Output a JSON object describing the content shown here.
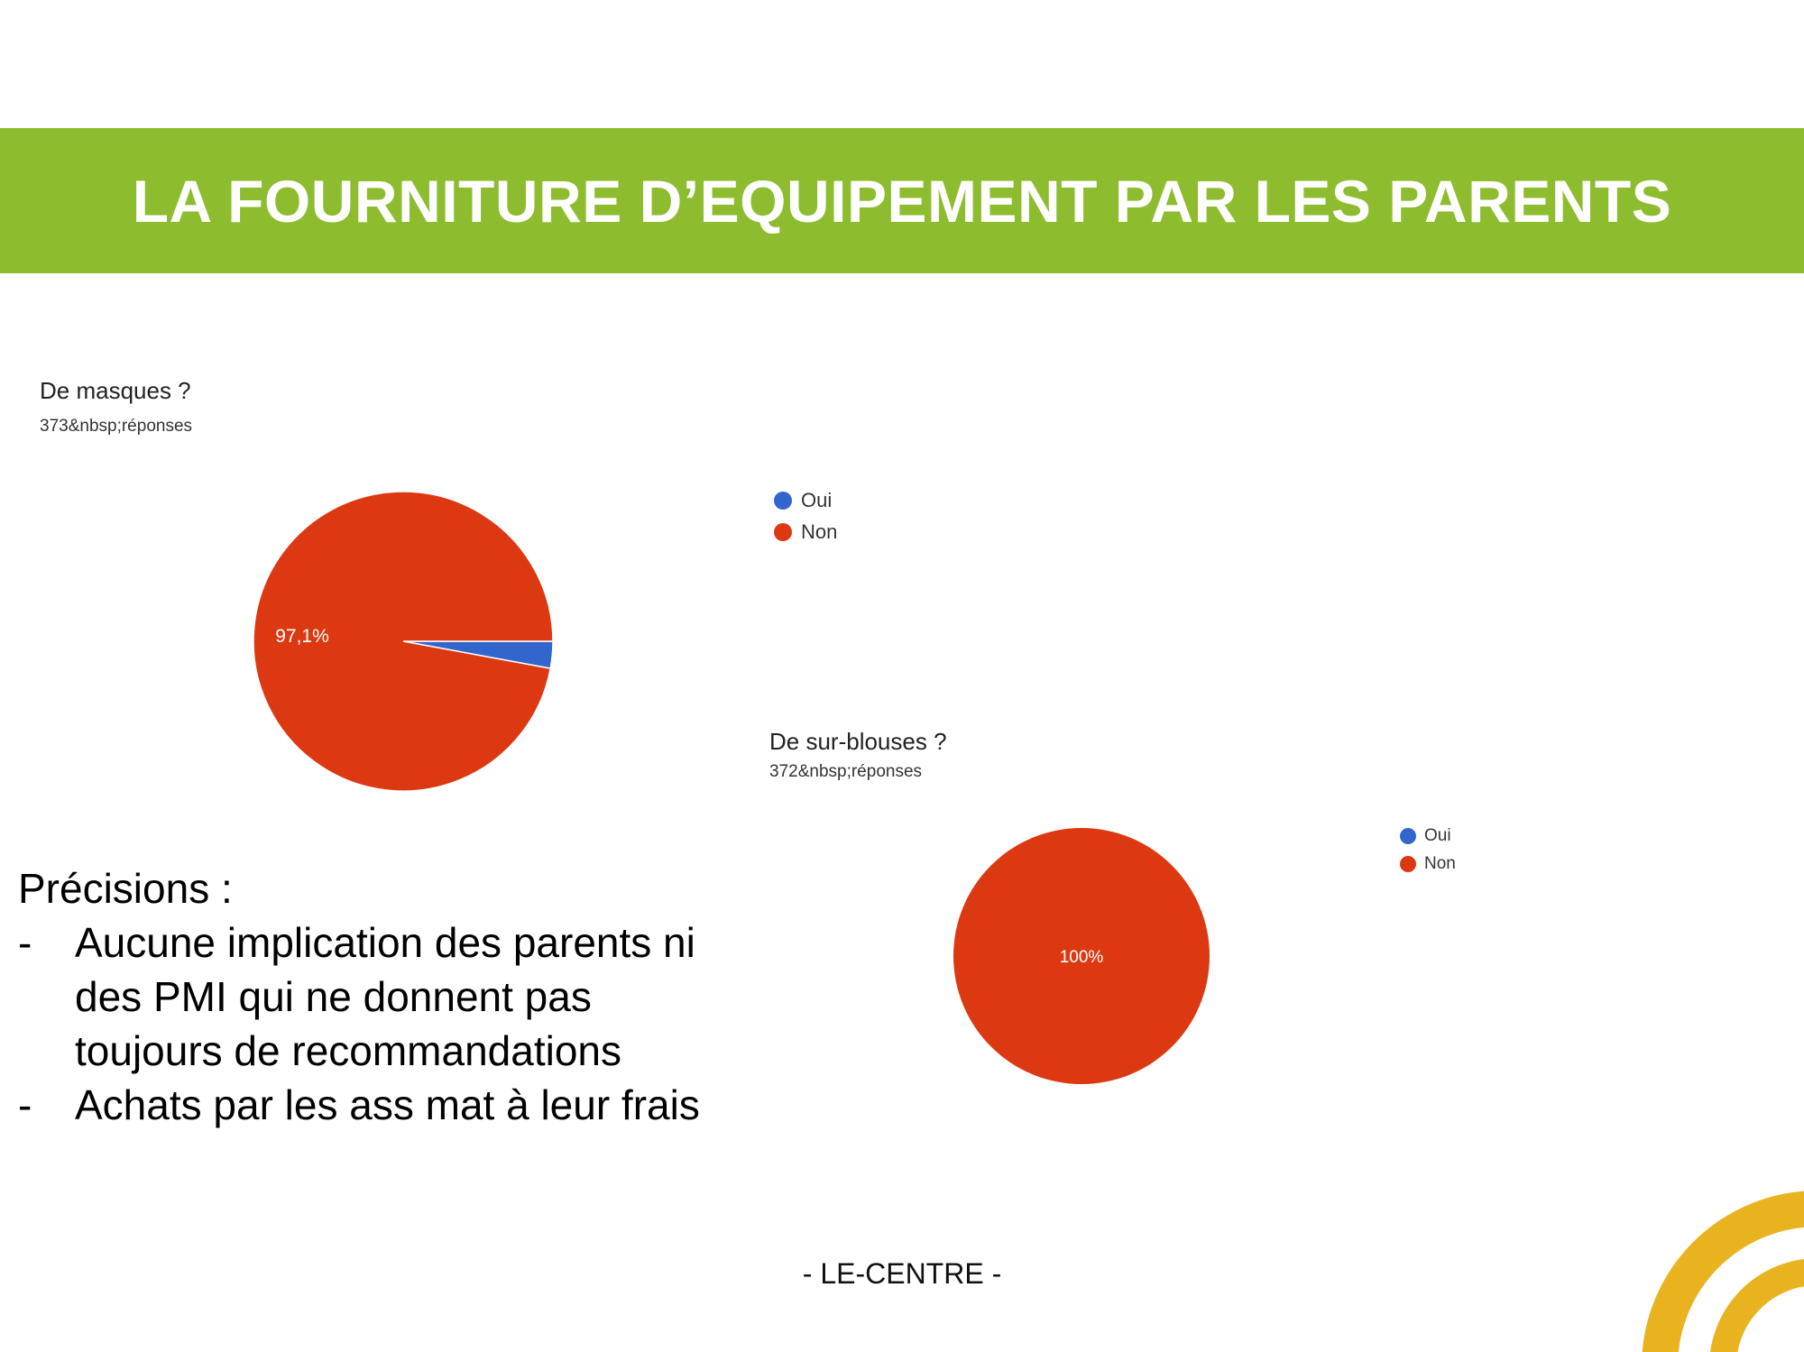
{
  "header": {
    "title": "LA FOURNITURE D’EQUIPEMENT PAR LES PARENTS",
    "color": "#8dbd2f"
  },
  "chart_data": [
    {
      "type": "pie",
      "title": "De masques ?",
      "subtitle": "373&nbsp;réponses",
      "categories": [
        "Oui",
        "Non"
      ],
      "values": [
        2.9,
        97.1
      ],
      "colors": [
        "#3366cc",
        "#dc3912"
      ],
      "slice_labels": [
        "",
        "97,1%"
      ],
      "legend": "right"
    },
    {
      "type": "pie",
      "title": "De sur-blouses ?",
      "subtitle": "372&nbsp;réponses",
      "categories": [
        "Oui",
        "Non"
      ],
      "values": [
        0,
        100
      ],
      "colors": [
        "#3366cc",
        "#dc3912"
      ],
      "slice_labels": [
        "",
        "100%"
      ],
      "legend": "right"
    }
  ],
  "notes": {
    "heading": "Précisions :",
    "items": [
      "Aucune implication des parents ni des PMI qui ne donnent pas toujours de recommandations",
      "Achats par les ass mat à leur frais"
    ]
  },
  "footer": {
    "text": "- LE-CENTRE -"
  },
  "decoration": {
    "accent": "#e9b320"
  }
}
